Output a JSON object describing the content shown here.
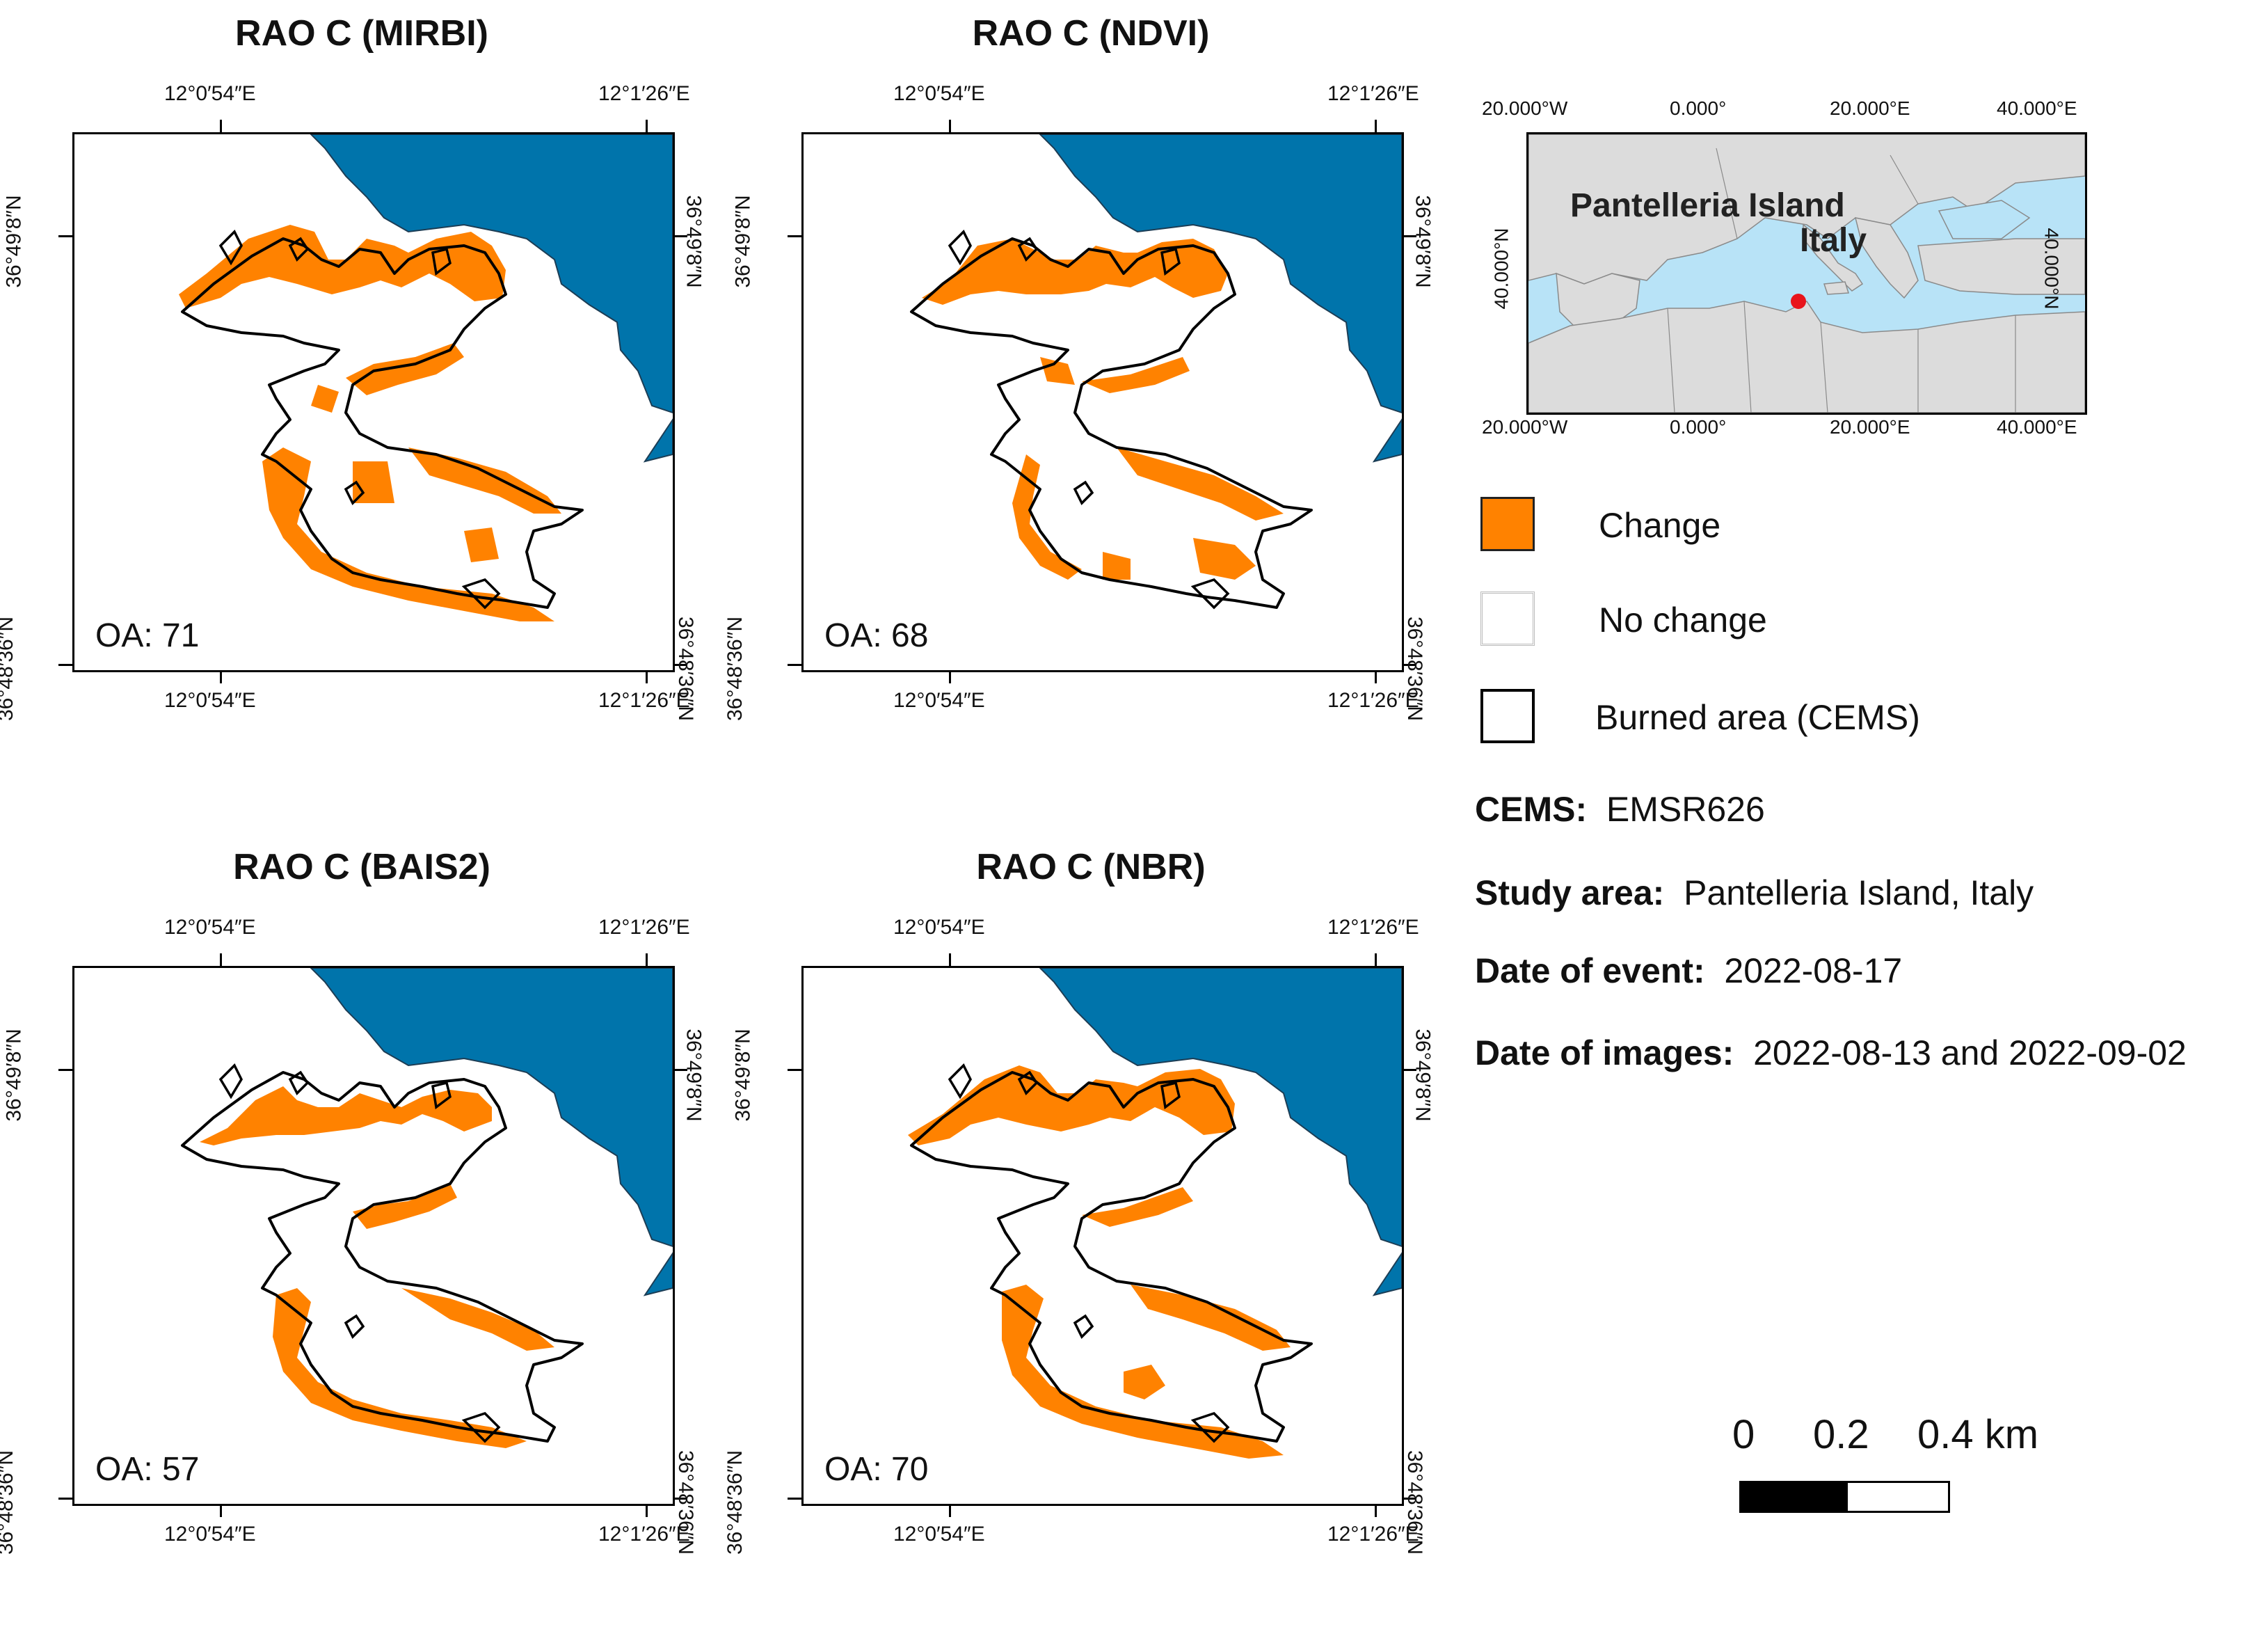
{
  "panels": [
    {
      "title": "RAO C (MIRBI)",
      "oa": "OA: 71"
    },
    {
      "title": "RAO C (NDVI)",
      "oa": "OA: 68"
    },
    {
      "title": "RAO C (BAIS2)",
      "oa": "OA: 57"
    },
    {
      "title": "RAO C (NBR)",
      "oa": "OA: 70"
    }
  ],
  "axis_ticks": {
    "lon_left": "12°0′54″E",
    "lon_right": "12°1′26″E",
    "lat_top": "36°49′8″N",
    "lat_bottom": "36°48′36″N"
  },
  "inset": {
    "lon_ticks": [
      "20.000°W",
      "0.000°",
      "20.000°E",
      "40.000°E"
    ],
    "lat_tick": "40.000°N",
    "place_name_1": "Pantelleria Island",
    "place_name_2": "Italy",
    "marker_color": "#e8141b",
    "sea_color": "#b8e3f7",
    "land_color": "#dcdcdc"
  },
  "legend": [
    {
      "label": "Change",
      "color": "#ff8200"
    },
    {
      "label": "No change",
      "color": "#ffffff"
    },
    {
      "label": "Burned area (CEMS)",
      "color": "#ffffff"
    }
  ],
  "info": {
    "cems_label": "CEMS:",
    "cems_value": "EMSR626",
    "study_label": "Study area:",
    "study_value": "Pantelleria Island, Italy",
    "event_label": "Date of event:",
    "event_value": "2022-08-17",
    "images_label": "Date of images:",
    "images_value": "2022-08-13 and 2022-09-02"
  },
  "scale_bar": {
    "labels": [
      "0",
      "0.2",
      "0.4 km"
    ]
  },
  "colors": {
    "sea": "#0074ab",
    "change": "#ff8200",
    "outline": "#000000"
  }
}
